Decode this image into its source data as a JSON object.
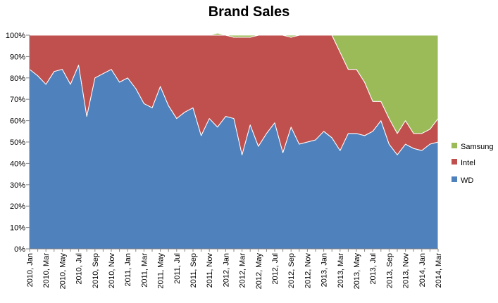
{
  "chart_data": {
    "type": "area",
    "title": "Brand Sales",
    "stacked_percent": true,
    "ylim": [
      0,
      100
    ],
    "y_ticks": [
      "0%",
      "10%",
      "20%",
      "30%",
      "40%",
      "50%",
      "60%",
      "70%",
      "80%",
      "90%",
      "100%"
    ],
    "x": [
      "2010, Jan",
      "2010, Feb",
      "2010, Mar",
      "2010, Apr",
      "2010, May",
      "2010, Jun",
      "2010, Jul",
      "2010, Aug",
      "2010, Sep",
      "2010, Oct",
      "2010, Nov",
      "2010, Dec",
      "2011, Jan",
      "2011, Feb",
      "2011, Mar",
      "2011, Apr",
      "2011, May",
      "2011, Jun",
      "2011, Jul",
      "2011, Aug",
      "2011, Sep",
      "2011, Oct",
      "2011, Nov",
      "2011, Dec",
      "2012, Jan",
      "2012, Feb",
      "2012, Mar",
      "2012, Apr",
      "2012, May",
      "2012, Jun",
      "2012, Jul",
      "2012, Aug",
      "2012, Sep",
      "2012, Oct",
      "2012, Nov",
      "2012, Dec",
      "2013, Jan",
      "2013, Feb",
      "2013, Mar",
      "2013, Apr",
      "2013, May",
      "2013, Jun",
      "2013, Jul",
      "2013, Aug",
      "2013, Sep",
      "2013, Oct",
      "2013, Nov",
      "2013, Dec",
      "2014, Jan",
      "2014, Feb",
      "2014, Mar"
    ],
    "x_tick_labels": [
      "2010, Jan",
      "2010, Mar",
      "2010, May",
      "2010, Jul",
      "2010, Sep",
      "2010, Nov",
      "2011, Jan",
      "2011, Mar",
      "2011, May",
      "2011, Jul",
      "2011, Sep",
      "2011, Nov",
      "2012, Jan",
      "2012, Mar",
      "2012, May",
      "2012, Jul",
      "2012, Sep",
      "2012, Nov",
      "2013, Jan",
      "2013, Mar",
      "2013, May",
      "2013, Jul",
      "2013, Sep",
      "2013, Nov",
      "2014, Jan",
      "2014, Mar"
    ],
    "series": [
      {
        "name": "WD",
        "color": "#4f81bd",
        "values": [
          84,
          81,
          77,
          83,
          84,
          77,
          86,
          62,
          80,
          82,
          84,
          78,
          80,
          75,
          68,
          66,
          76,
          67,
          61,
          64,
          66,
          53,
          61,
          57,
          62,
          61,
          44,
          58,
          48,
          54,
          59,
          45,
          57,
          49,
          50,
          51,
          55,
          52,
          46,
          54,
          54,
          53,
          55,
          60,
          49,
          44,
          49,
          47,
          46,
          49,
          50
        ]
      },
      {
        "name": "Intel",
        "color": "#c0504d",
        "values": [
          16,
          19,
          23,
          17,
          16,
          23,
          14,
          38,
          20,
          18,
          16,
          22,
          20,
          25,
          32,
          34,
          24,
          33,
          39,
          36,
          34,
          47,
          39,
          43,
          38,
          38,
          55,
          41,
          52,
          46,
          41,
          55,
          42,
          51,
          50,
          49,
          45,
          48,
          46,
          30,
          30,
          25,
          14,
          9,
          12,
          10,
          11,
          7,
          8,
          7,
          11
        ]
      },
      {
        "name": "Samsung",
        "color": "#9bbb59",
        "values": [
          0,
          0,
          0,
          0,
          0,
          0,
          0,
          0,
          0,
          0,
          0,
          0,
          0,
          0,
          0,
          0,
          0,
          0,
          0,
          0,
          0,
          0,
          0,
          1,
          0,
          1,
          1,
          1,
          0,
          0,
          0,
          0,
          1,
          0,
          0,
          0,
          0,
          0,
          8,
          16,
          16,
          22,
          31,
          31,
          39,
          46,
          40,
          46,
          46,
          44,
          39
        ]
      }
    ],
    "legend_position": "right",
    "grid": false
  }
}
